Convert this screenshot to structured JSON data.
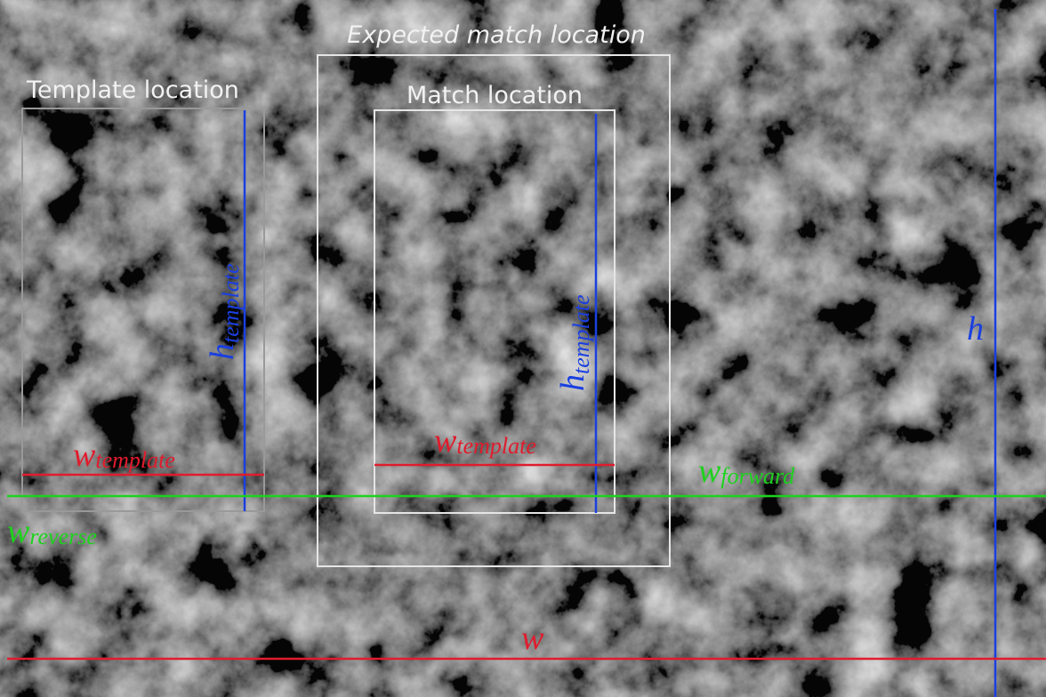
{
  "boxes": [
    {
      "label": "Expected match location"
    },
    {
      "label": "Template location"
    },
    {
      "label": "Match location"
    }
  ],
  "annotations": [
    {
      "symbol": "w",
      "subscript": "template"
    },
    {
      "symbol": "h",
      "subscript": "template"
    },
    {
      "symbol": "w",
      "subscript": "template"
    },
    {
      "symbol": "h",
      "subscript": "template"
    },
    {
      "symbol": "w",
      "subscript": "forward"
    },
    {
      "symbol": "w",
      "subscript": "reverse"
    },
    {
      "symbol": "h"
    },
    {
      "symbol": "w"
    }
  ]
}
